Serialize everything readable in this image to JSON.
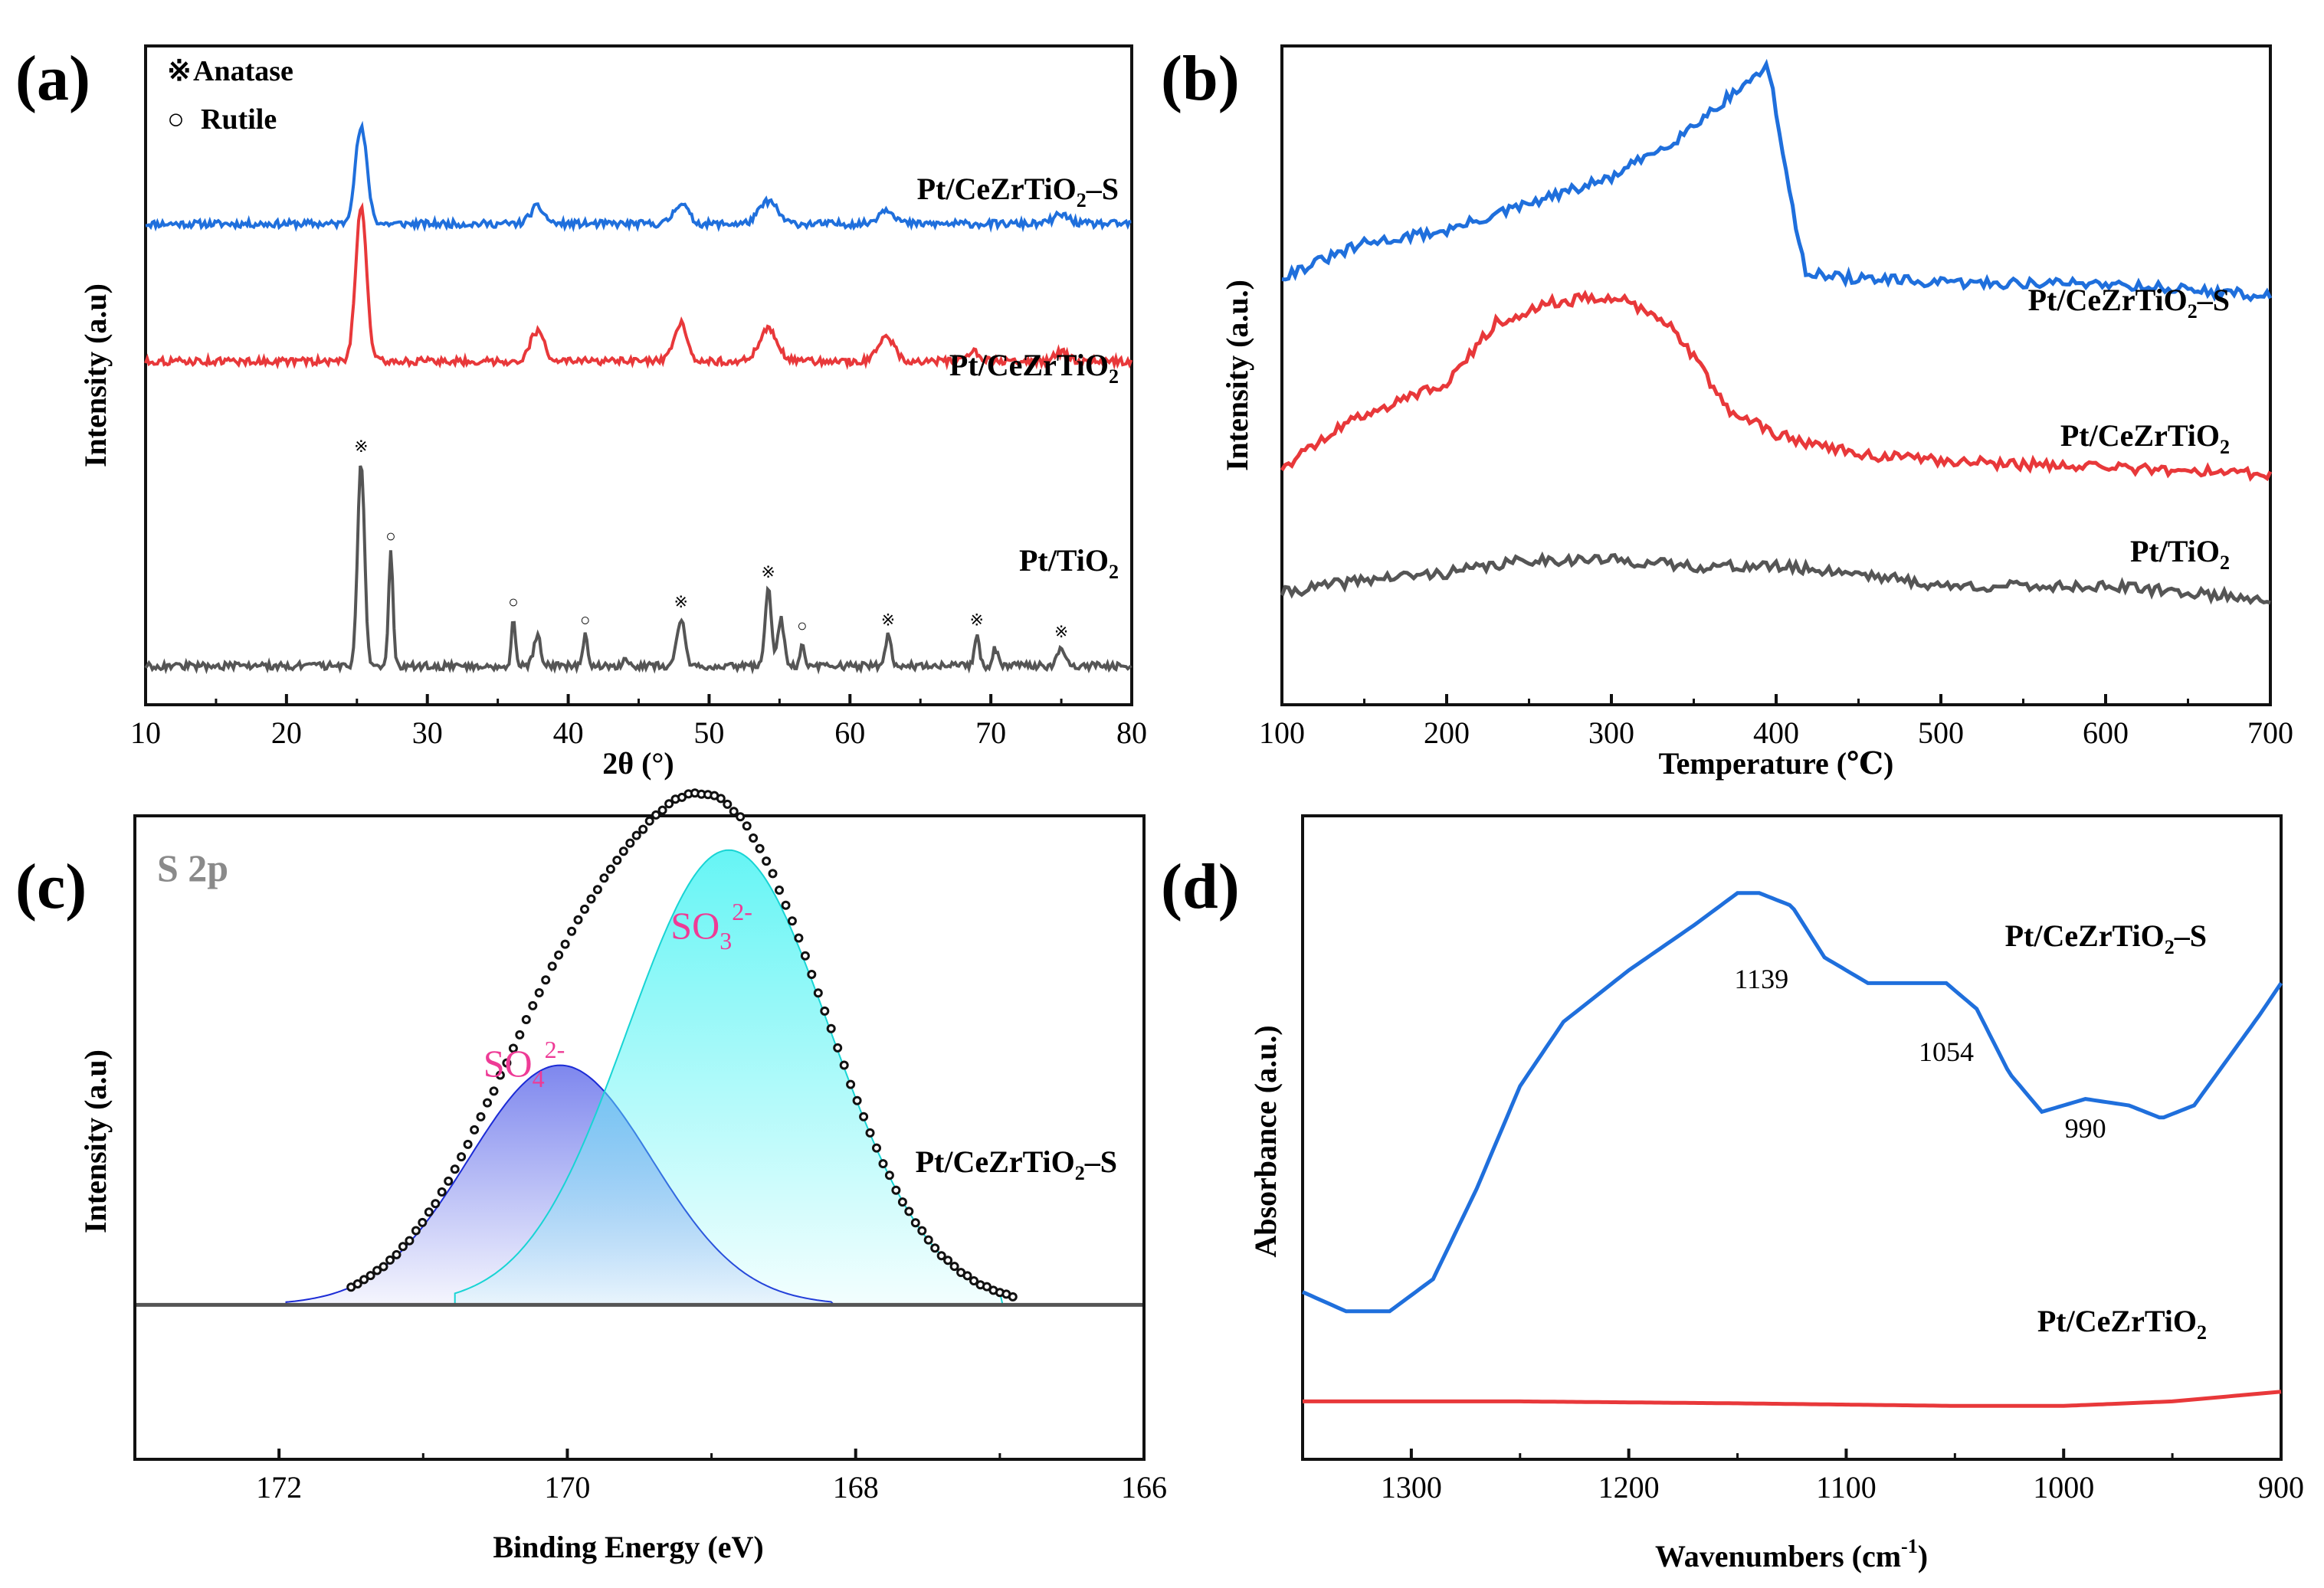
{
  "figure": {
    "panels": [
      "(a)",
      "(b)",
      "(c)",
      "(d)"
    ]
  },
  "colors": {
    "blue": "#1f6fdc",
    "red": "#e8383a",
    "gray": "#555555",
    "black": "#111111",
    "pink": "#ee3b96",
    "fill_blue": "#7e87ee",
    "fill_cyan": "#66f5f5",
    "slabel": "#8a8a8a"
  },
  "chart_data": [
    {
      "id": "a",
      "type": "line",
      "title": "",
      "xlabel": "2θ (°)",
      "ylabel": "Intensity (a.u)",
      "xlim": [
        10,
        80
      ],
      "ylim": [
        0,
        100
      ],
      "xticks": [
        10,
        20,
        30,
        40,
        50,
        60,
        70,
        80
      ],
      "legend": [
        {
          "symbol": "※",
          "label": "Anatase"
        },
        {
          "symbol": "○",
          "label": "Rutile"
        }
      ],
      "series": [
        {
          "name": "Pt/CeZrTiO2-S",
          "label_main": "Pt/CeZrTiO",
          "label_sub": "2",
          "label_suffix": "–S",
          "color": "blue",
          "baseline": 76,
          "peaks": [
            [
              25.3,
              16,
              0.6
            ],
            [
              37.8,
              2.8,
              0.7
            ],
            [
              48.0,
              3.5,
              0.7
            ],
            [
              54.2,
              3.8,
              0.9
            ],
            [
              62.6,
              2.5,
              0.8
            ],
            [
              75.0,
              1.5,
              0.8
            ]
          ]
        },
        {
          "name": "Pt/CeZrTiO2",
          "label_main": "Pt/CeZrTiO",
          "label_sub": "2",
          "label_suffix": "",
          "color": "red",
          "baseline": 53,
          "peaks": [
            [
              25.3,
              26,
              0.55
            ],
            [
              37.8,
              5,
              0.7
            ],
            [
              48.0,
              6.5,
              0.65
            ],
            [
              54.2,
              5.5,
              0.9
            ],
            [
              62.6,
              4,
              0.8
            ],
            [
              68.8,
              1.5,
              0.6
            ],
            [
              75.0,
              1.5,
              0.7
            ]
          ]
        },
        {
          "name": "Pt/TiO2",
          "label_main": "Pt/TiO",
          "label_sub": "2",
          "label_suffix": "",
          "color": "gray",
          "baseline": 2,
          "peaks": [
            [
              25.3,
              34,
              0.35
            ],
            [
              27.4,
              19,
              0.22
            ],
            [
              36.1,
              8,
              0.2
            ],
            [
              37.8,
              5,
              0.35
            ],
            [
              41.2,
              5,
              0.25
            ],
            [
              44.0,
              1.5,
              0.2
            ],
            [
              48.0,
              8,
              0.4
            ],
            [
              54.2,
              13,
              0.3
            ],
            [
              55.1,
              8,
              0.3
            ],
            [
              56.6,
              4,
              0.2
            ],
            [
              62.7,
              5,
              0.3
            ],
            [
              69.0,
              5,
              0.25
            ],
            [
              70.3,
              3,
              0.25
            ],
            [
              75.0,
              3,
              0.4
            ]
          ]
        }
      ],
      "markers": [
        {
          "x": 25.3,
          "sym": "※"
        },
        {
          "x": 27.4,
          "sym": "○"
        },
        {
          "x": 36.1,
          "sym": "○"
        },
        {
          "x": 41.2,
          "sym": "○"
        },
        {
          "x": 48.0,
          "sym": "※"
        },
        {
          "x": 54.2,
          "sym": "※"
        },
        {
          "x": 56.6,
          "sym": "○"
        },
        {
          "x": 62.7,
          "sym": "※"
        },
        {
          "x": 69.0,
          "sym": "※"
        },
        {
          "x": 75.0,
          "sym": "※"
        }
      ]
    },
    {
      "id": "b",
      "type": "line",
      "title": "",
      "xlabel": "Temperature (℃)",
      "ylabel": "Intensity (a.u.)",
      "xlim": [
        100,
        700
      ],
      "ylim": [
        0,
        100
      ],
      "xticks": [
        100,
        200,
        300,
        400,
        500,
        600,
        700
      ],
      "series": [
        {
          "name": "Pt/CeZrTiO2-S",
          "label_main": "Pt/CeZrTiO",
          "label_sub": "2",
          "label_suffix": "–S",
          "color": "blue",
          "points": [
            [
              100,
              65
            ],
            [
              120,
              67
            ],
            [
              150,
              70
            ],
            [
              200,
              72
            ],
            [
              250,
              76
            ],
            [
              300,
              80
            ],
            [
              340,
              86
            ],
            [
              370,
              92
            ],
            [
              395,
              97
            ],
            [
              400,
              90
            ],
            [
              410,
              75
            ],
            [
              418,
              66
            ],
            [
              430,
              65
            ],
            [
              500,
              64
            ],
            [
              600,
              64
            ],
            [
              700,
              62
            ]
          ]
        },
        {
          "name": "Pt/CeZrTiO2",
          "label_main": "Pt/CeZrTiO",
          "label_sub": "2",
          "label_suffix": "",
          "color": "red",
          "points": [
            [
              100,
              36
            ],
            [
              140,
              43
            ],
            [
              200,
              49
            ],
            [
              230,
              58
            ],
            [
              260,
              61
            ],
            [
              300,
              62
            ],
            [
              330,
              59
            ],
            [
              350,
              53
            ],
            [
              370,
              45
            ],
            [
              400,
              41
            ],
            [
              450,
              38
            ],
            [
              500,
              37
            ],
            [
              600,
              36
            ],
            [
              700,
              35
            ]
          ]
        },
        {
          "name": "Pt/TiO2",
          "label_main": "Pt/TiO",
          "label_sub": "2",
          "label_suffix": "",
          "color": "gray",
          "points": [
            [
              100,
              17
            ],
            [
              150,
              19
            ],
            [
              200,
              20
            ],
            [
              250,
              22
            ],
            [
              300,
              22
            ],
            [
              350,
              21
            ],
            [
              400,
              21
            ],
            [
              450,
              20
            ],
            [
              500,
              18
            ],
            [
              600,
              18
            ],
            [
              700,
              16
            ]
          ]
        }
      ]
    },
    {
      "id": "c",
      "type": "line",
      "title": "S 2p",
      "xlabel": "Binding Energy (eV)",
      "ylabel": "Intensity (a.u)",
      "xlim": [
        173,
        166
      ],
      "ylim": [
        0,
        100
      ],
      "xticks": [
        172,
        170,
        168,
        166
      ],
      "annotations": [
        {
          "main": "SO",
          "sub": "4",
          "sup": "2-",
          "x": 170.3
        },
        {
          "main": "SO",
          "sub": "3",
          "sup": "2-",
          "x": 169.0
        }
      ],
      "sample_label": {
        "main": "Pt/CeZrTiO",
        "sub": "2",
        "suffix": "–S"
      },
      "components": [
        {
          "name": "SO4 2-",
          "center": 170.05,
          "height": 49,
          "fwhm": 1.5,
          "color": "fill_blue"
        },
        {
          "name": "SO3 2-",
          "center": 168.88,
          "height": 93,
          "fwhm": 1.65,
          "color": "fill_cyan"
        }
      ],
      "baseline": 24
    },
    {
      "id": "d",
      "type": "line",
      "title": "",
      "xlabel": "Wavenumbers (cm",
      "xlabel_sup": "-1",
      "xlabel_end": ")",
      "ylabel": "Absorbance (a.u.)",
      "xlim": [
        1350,
        900
      ],
      "ylim": [
        0,
        100
      ],
      "xticks": [
        1300,
        1200,
        1100,
        1000,
        900
      ],
      "peak_labels": [
        {
          "text": "1139",
          "x": 1139
        },
        {
          "text": "1054",
          "x": 1054
        },
        {
          "text": "990",
          "x": 990
        }
      ],
      "series": [
        {
          "name": "Pt/CeZrTiO2-S",
          "label_main": "Pt/CeZrTiO",
          "label_sub": "2",
          "label_suffix": "–S",
          "color": "blue",
          "points": [
            [
              1350,
              26
            ],
            [
              1330,
              23
            ],
            [
              1310,
              23
            ],
            [
              1290,
              28
            ],
            [
              1270,
              42
            ],
            [
              1250,
              58
            ],
            [
              1230,
              68
            ],
            [
              1200,
              76
            ],
            [
              1170,
              83
            ],
            [
              1150,
              88
            ],
            [
              1140,
              88
            ],
            [
              1125,
              86
            ],
            [
              1110,
              78
            ],
            [
              1090,
              74
            ],
            [
              1070,
              74
            ],
            [
              1054,
              74
            ],
            [
              1040,
              70
            ],
            [
              1025,
              60
            ],
            [
              1010,
              54
            ],
            [
              990,
              56
            ],
            [
              970,
              55
            ],
            [
              955,
              53
            ],
            [
              940,
              55
            ],
            [
              925,
              62
            ],
            [
              910,
              69
            ],
            [
              900,
              74
            ]
          ]
        },
        {
          "name": "Pt/CeZrTiO2",
          "label_main": "Pt/CeZrTiO",
          "label_sub": "2",
          "label_suffix": "",
          "color": "red",
          "points": [
            [
              1350,
              9
            ],
            [
              1250,
              9
            ],
            [
              1150,
              8.7
            ],
            [
              1050,
              8.3
            ],
            [
              1000,
              8.3
            ],
            [
              950,
              9
            ],
            [
              900,
              10.5
            ]
          ]
        }
      ]
    }
  ]
}
